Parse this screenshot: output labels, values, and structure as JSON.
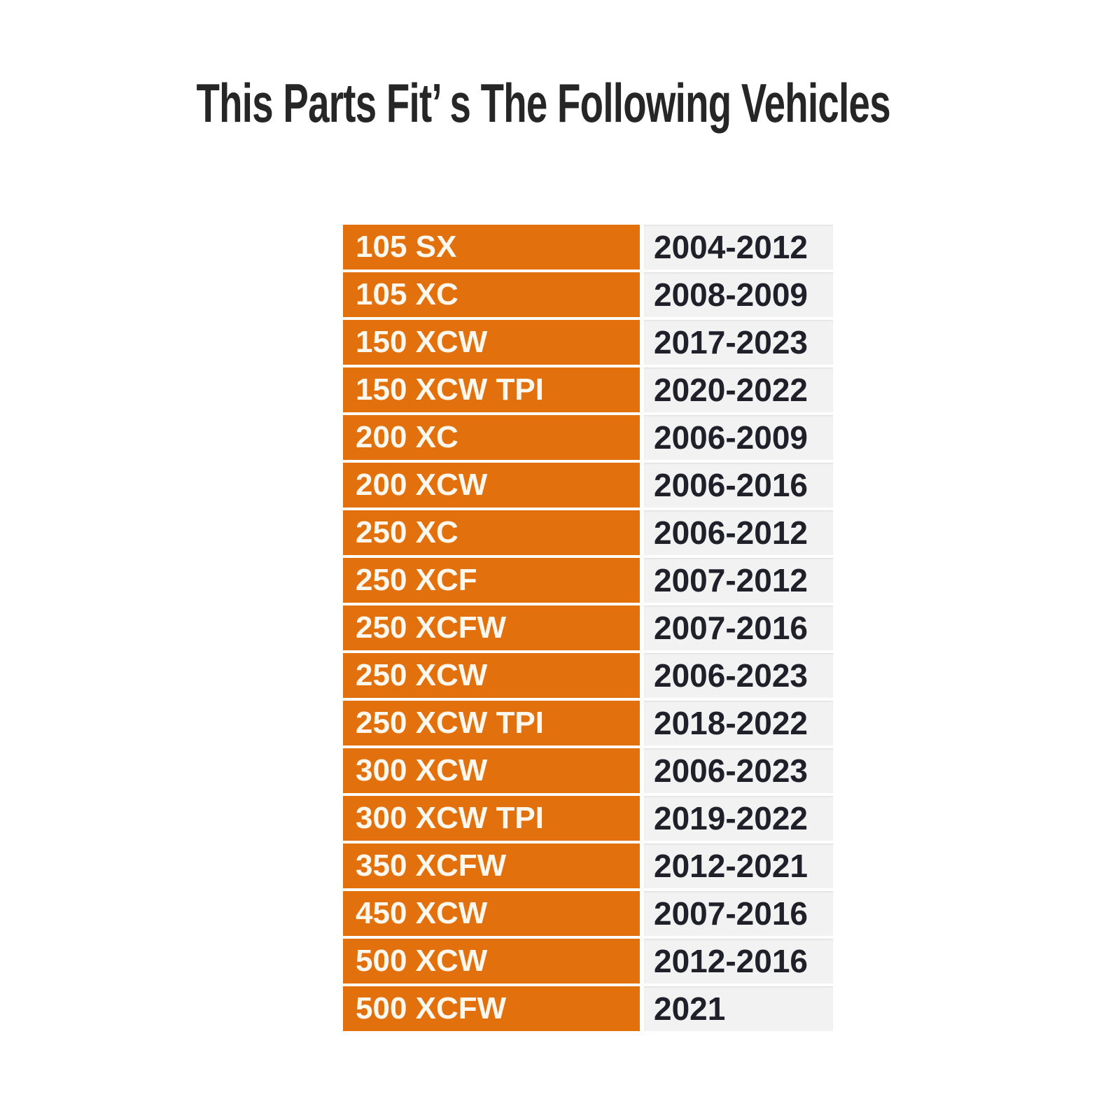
{
  "title": "This Parts Fit’ s The Following Vehicles",
  "table": {
    "rows": [
      {
        "model": "105 SX",
        "years": "2004-2012"
      },
      {
        "model": "105 XC",
        "years": "2008-2009"
      },
      {
        "model": "150 XCW",
        "years": "2017-2023"
      },
      {
        "model": "150 XCW TPI",
        "years": "2020-2022"
      },
      {
        "model": "200 XC",
        "years": "2006-2009"
      },
      {
        "model": "200 XCW",
        "years": "2006-2016"
      },
      {
        "model": "250 XC",
        "years": "2006-2012"
      },
      {
        "model": "250 XCF",
        "years": "2007-2012"
      },
      {
        "model": "250 XCFW",
        "years": "2007-2016"
      },
      {
        "model": "250 XCW",
        "years": "2006-2023"
      },
      {
        "model": "250 XCW TPI",
        "years": "2018-2022"
      },
      {
        "model": "300 XCW",
        "years": "2006-2023"
      },
      {
        "model": "300 XCW TPI",
        "years": "2019-2022"
      },
      {
        "model": "350 XCFW",
        "years": "2012-2021"
      },
      {
        "model": "450 XCW",
        "years": "2007-2016"
      },
      {
        "model": "500 XCW",
        "years": "2012-2016"
      },
      {
        "model": "500 XCFW",
        "years": "2021"
      }
    ]
  },
  "colors": {
    "title_text": "#262626",
    "model_cell_bg": "#E2700C",
    "model_cell_text": "#FDF7EE",
    "year_cell_bg": "#F2F2F2",
    "year_cell_text": "#20202B",
    "row_gap": "#FFFFFF"
  }
}
